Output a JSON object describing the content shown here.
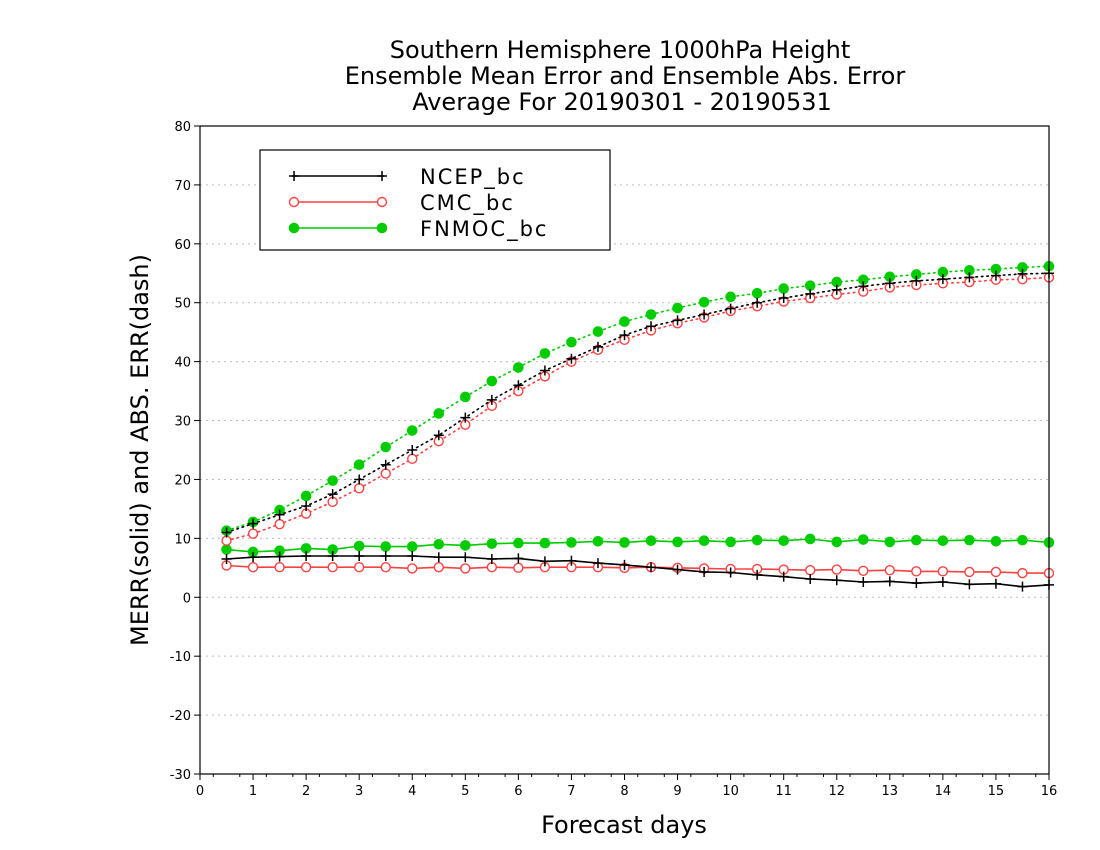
{
  "chart_data": {
    "type": "line",
    "title": [
      "Southern Hemisphere 1000hPa Height",
      "Ensemble Mean Error and Ensemble Abs. Error",
      "Average For 20190301 - 20190531"
    ],
    "xlabel": "Forecast days",
    "ylabel": "MERR(solid) and ABS. ERR(dash)",
    "xlim": [
      0,
      16
    ],
    "ylim": [
      -30,
      80
    ],
    "x_ticks": [
      0,
      1,
      2,
      3,
      4,
      5,
      6,
      7,
      8,
      9,
      10,
      11,
      12,
      13,
      14,
      15,
      16
    ],
    "y_ticks": [
      -30,
      -20,
      -10,
      0,
      10,
      20,
      30,
      40,
      50,
      60,
      70,
      80
    ],
    "grid": true,
    "legend_position": "top-left",
    "x": [
      0.5,
      1,
      1.5,
      2,
      2.5,
      3,
      3.5,
      4,
      4.5,
      5,
      5.5,
      6,
      6.5,
      7,
      7.5,
      8,
      8.5,
      9,
      9.5,
      10,
      10.5,
      11,
      11.5,
      12,
      12.5,
      13,
      13.5,
      14,
      14.5,
      15,
      15.5,
      16
    ],
    "series": [
      {
        "name": "NCEP_bc",
        "color": "#000000",
        "marker": "plus",
        "merr": [
          6.5,
          6.8,
          6.9,
          7.0,
          7.0,
          7.0,
          7.0,
          7.0,
          6.8,
          6.8,
          6.5,
          6.6,
          6.1,
          6.2,
          5.8,
          5.5,
          5.1,
          4.7,
          4.3,
          4.2,
          3.8,
          3.5,
          3.1,
          2.9,
          2.6,
          2.7,
          2.4,
          2.6,
          2.2,
          2.3,
          1.8,
          2.1
        ],
        "abs_err": [
          11.0,
          12.5,
          14.0,
          15.5,
          17.5,
          20.0,
          22.5,
          25.0,
          27.5,
          30.5,
          33.5,
          36.0,
          38.5,
          40.5,
          42.5,
          44.5,
          46.0,
          47.0,
          48.0,
          49.0,
          50.0,
          50.8,
          51.5,
          52.2,
          52.8,
          53.3,
          53.7,
          54.0,
          54.3,
          54.6,
          54.9,
          55.0
        ]
      },
      {
        "name": "CMC_bc",
        "color": "#ff4040",
        "marker": "open-circle",
        "merr": [
          5.4,
          5.1,
          5.1,
          5.1,
          5.1,
          5.1,
          5.1,
          4.9,
          5.1,
          4.9,
          5.1,
          5.0,
          5.1,
          5.1,
          5.1,
          5.0,
          5.1,
          5.0,
          4.9,
          4.8,
          4.8,
          4.7,
          4.6,
          4.7,
          4.5,
          4.6,
          4.4,
          4.4,
          4.3,
          4.3,
          4.1,
          4.1
        ],
        "abs_err": [
          9.6,
          10.8,
          12.4,
          14.2,
          16.2,
          18.5,
          21.0,
          23.5,
          26.5,
          29.3,
          32.5,
          35.0,
          37.5,
          40.0,
          42.0,
          43.7,
          45.3,
          46.5,
          47.5,
          48.6,
          49.4,
          50.2,
          50.8,
          51.4,
          51.9,
          52.6,
          53.0,
          53.3,
          53.5,
          53.9,
          54.0,
          54.3
        ]
      },
      {
        "name": "FNMOC_bc",
        "color": "#00cc00",
        "marker": "filled-circle",
        "merr": [
          8.1,
          7.7,
          7.9,
          8.3,
          8.1,
          8.7,
          8.6,
          8.6,
          9.0,
          8.8,
          9.1,
          9.2,
          9.2,
          9.3,
          9.5,
          9.3,
          9.6,
          9.4,
          9.6,
          9.4,
          9.7,
          9.6,
          9.9,
          9.4,
          9.8,
          9.4,
          9.7,
          9.6,
          9.7,
          9.5,
          9.7,
          9.3
        ],
        "abs_err": [
          11.3,
          12.8,
          14.8,
          17.2,
          19.8,
          22.5,
          25.5,
          28.3,
          31.2,
          34.0,
          36.7,
          39.0,
          41.4,
          43.3,
          45.1,
          46.8,
          48.0,
          49.1,
          50.1,
          51.0,
          51.6,
          52.4,
          52.9,
          53.5,
          53.9,
          54.4,
          54.8,
          55.2,
          55.5,
          55.7,
          56.0,
          56.2
        ]
      }
    ]
  }
}
